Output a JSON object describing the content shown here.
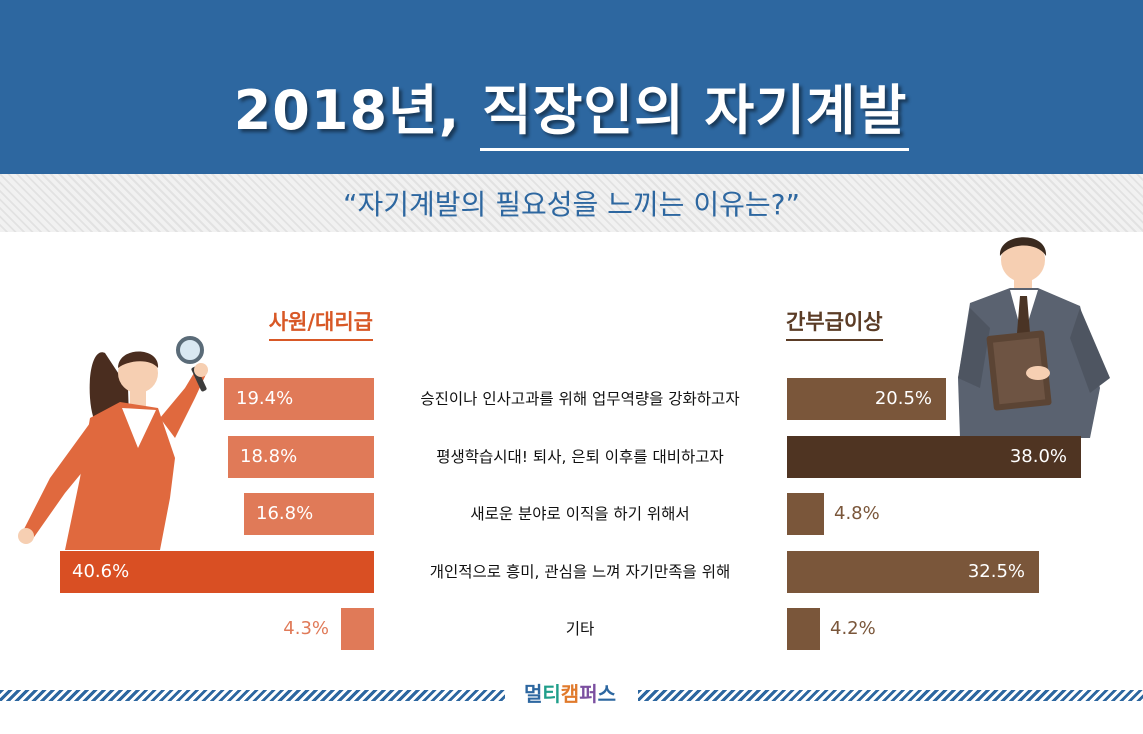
{
  "header": {
    "title_prefix": "2018년,",
    "title_emphasis": "직장인의 자기계발",
    "subtitle": "“자기계발의 필요성을 느끼는 이유는?”"
  },
  "colors": {
    "header_bg": "#2d67a0",
    "left_bar": "#e07a58",
    "left_bar_highlight": "#d94f23",
    "right_bar": "#7a563a",
    "right_bar_highlight": "#4f3422",
    "left_label": "#d85826",
    "right_label": "#5b3c26"
  },
  "chart_data": {
    "type": "bar",
    "orientation": "horizontal",
    "categories": [
      "승진이나 인사고과를 위해 업무역량을 강화하고자",
      "평생학습시대! 퇴사, 은퇴 이후를 대비하고자",
      "새로운 분야로 이직을 하기 위해서",
      "개인적으로 흥미, 관심을 느껴 자기만족을 위해",
      "기타"
    ],
    "series": [
      {
        "name": "사원/대리급",
        "values": [
          19.4,
          18.8,
          16.8,
          40.6,
          4.3
        ],
        "labels": [
          "19.4%",
          "18.8%",
          "16.8%",
          "40.6%",
          "4.3%"
        ],
        "highlight_index": 3
      },
      {
        "name": "간부급이상",
        "values": [
          20.5,
          38.0,
          4.8,
          32.5,
          4.2
        ],
        "labels": [
          "20.5%",
          "38.0%",
          "4.8%",
          "32.5%",
          "4.2%"
        ],
        "highlight_index": 1
      }
    ],
    "unit": "%"
  },
  "footer": {
    "logo": [
      "멀",
      "티",
      "캠",
      "퍼",
      "스"
    ],
    "logo_colors": [
      "#2d67a0",
      "#1f9e8a",
      "#e07a2c",
      "#7b4fa0",
      "#2d67a0"
    ]
  }
}
